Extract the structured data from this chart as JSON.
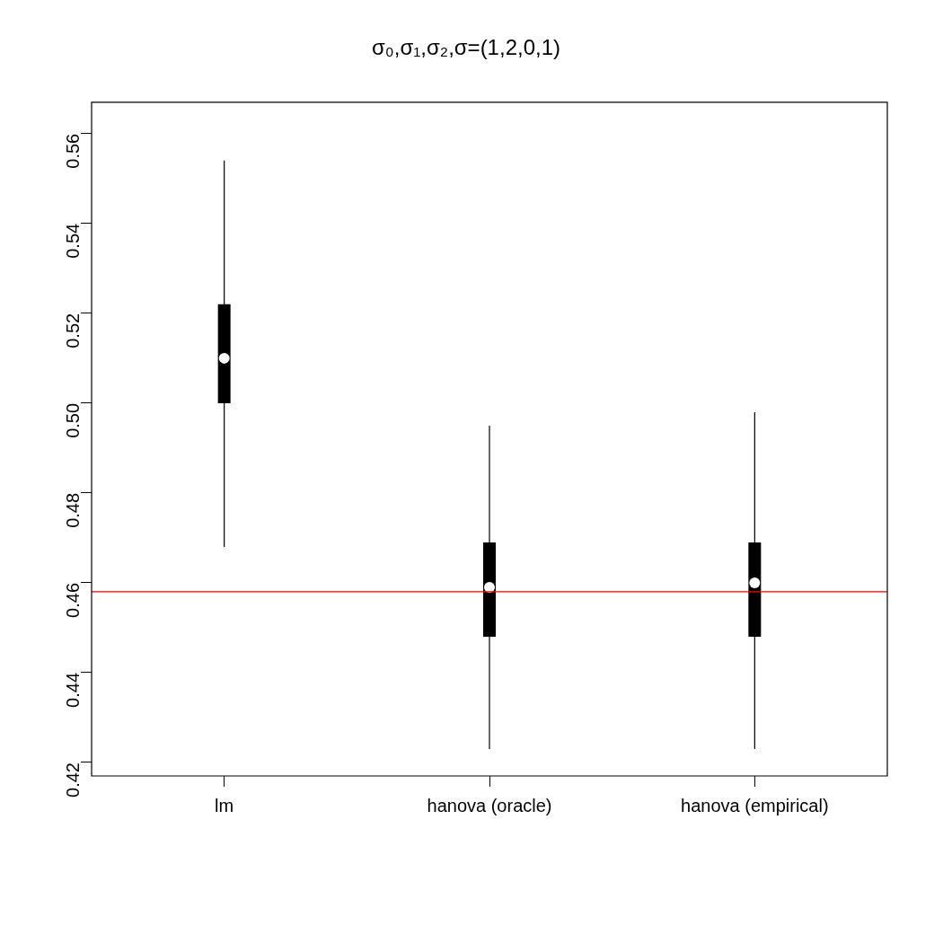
{
  "chart_data": {
    "type": "box",
    "title": "σ₀,σ₁,σ₂,σ=(1,2,0,1)",
    "categories": [
      "lm",
      "hanova (oracle)",
      "hanova (empirical)"
    ],
    "color": "#000000",
    "boxes": [
      {
        "low": 0.468,
        "q1": 0.5,
        "median": 0.51,
        "q3": 0.522,
        "high": 0.554
      },
      {
        "low": 0.423,
        "q1": 0.448,
        "median": 0.459,
        "q3": 0.469,
        "high": 0.495
      },
      {
        "low": 0.423,
        "q1": 0.448,
        "median": 0.46,
        "q3": 0.469,
        "high": 0.498
      }
    ],
    "ylim": [
      0.417,
      0.567
    ],
    "yticks": [
      0.42,
      0.44,
      0.46,
      0.48,
      {
        "value": 0.5,
        "label": "0.50"
      },
      0.52,
      0.54,
      0.56
    ],
    "ref_lines": [
      {
        "axis": "y",
        "value": 0.458,
        "color": "#ff0000"
      }
    ],
    "grid": false,
    "legend": false
  }
}
